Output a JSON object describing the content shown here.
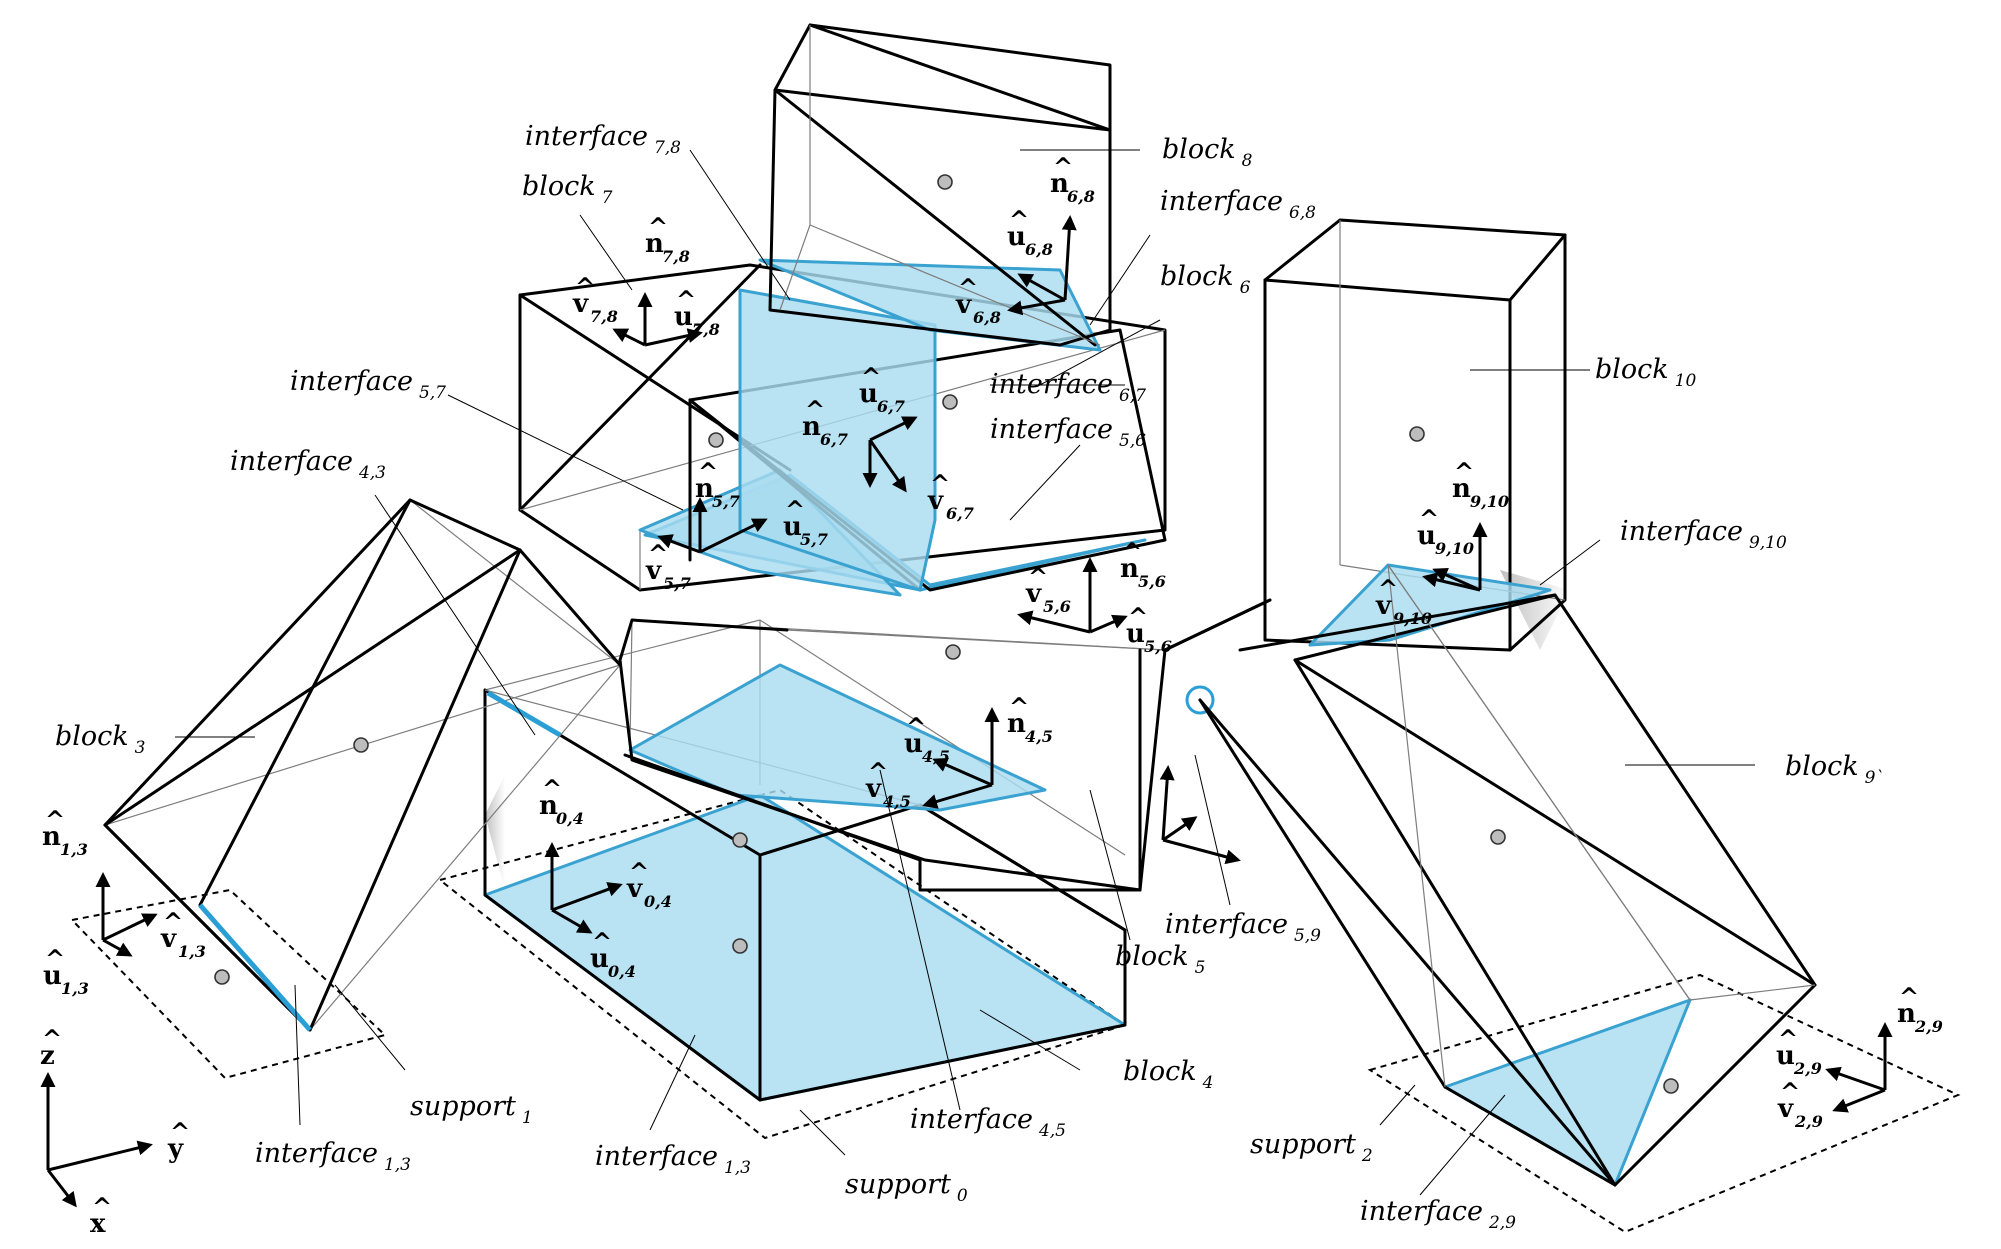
{
  "blocks": [
    {
      "id": "b3",
      "name": "block",
      "sub": "3"
    },
    {
      "id": "b4",
      "name": "block",
      "sub": "4"
    },
    {
      "id": "b5",
      "name": "block",
      "sub": "5"
    },
    {
      "id": "b6",
      "name": "block",
      "sub": "6"
    },
    {
      "id": "b7",
      "name": "block",
      "sub": "7"
    },
    {
      "id": "b8",
      "name": "block",
      "sub": "8"
    },
    {
      "id": "b9",
      "name": "block",
      "sub": "9`"
    },
    {
      "id": "b10",
      "name": "block",
      "sub": "10"
    }
  ],
  "interfaces": [
    {
      "id": "i78",
      "name": "interface",
      "sub": "7,8"
    },
    {
      "id": "i68",
      "name": "interface",
      "sub": "6,8"
    },
    {
      "id": "i57",
      "name": "interface",
      "sub": "5,7"
    },
    {
      "id": "i67",
      "name": "interface",
      "sub": "6,7"
    },
    {
      "id": "i56",
      "name": "interface",
      "sub": "5,6"
    },
    {
      "id": "i43",
      "name": "interface",
      "sub": "4,3"
    },
    {
      "id": "i910",
      "name": "interface",
      "sub": "9,10"
    },
    {
      "id": "i59",
      "name": "interface",
      "sub": "5,9"
    },
    {
      "id": "i13a",
      "name": "interface",
      "sub": "1,3"
    },
    {
      "id": "i13b",
      "name": "interface",
      "sub": "1,3"
    },
    {
      "id": "i45",
      "name": "interface",
      "sub": "4,5"
    },
    {
      "id": "i29",
      "name": "interface",
      "sub": "2,9"
    }
  ],
  "supports": [
    {
      "id": "s0",
      "name": "support",
      "sub": "0"
    },
    {
      "id": "s1",
      "name": "support",
      "sub": "1"
    },
    {
      "id": "s2",
      "name": "support",
      "sub": "2"
    }
  ],
  "frames": [
    {
      "id": "f78",
      "n": "n",
      "u": "u",
      "v": "v",
      "sub": "7,8"
    },
    {
      "id": "f68",
      "n": "n",
      "u": "u",
      "v": "v",
      "sub": "6,8"
    },
    {
      "id": "f67",
      "n": "n",
      "u": "u",
      "v": "v",
      "sub": "6,7"
    },
    {
      "id": "f57",
      "n": "n",
      "u": "u",
      "v": "v",
      "sub": "5,7"
    },
    {
      "id": "f56",
      "n": "n",
      "u": "u",
      "v": "v",
      "sub": "5,6"
    },
    {
      "id": "f910",
      "n": "n",
      "u": "u",
      "v": "v",
      "sub": "9,10"
    },
    {
      "id": "f45",
      "n": "n",
      "u": "u",
      "v": "v",
      "sub": "4,5"
    },
    {
      "id": "f04",
      "n": "n",
      "u": "u",
      "v": "v",
      "sub": "0,4"
    },
    {
      "id": "f13",
      "n": "n",
      "u": "u",
      "v": "v",
      "sub": "1,3"
    },
    {
      "id": "f29",
      "n": "n",
      "u": "u",
      "v": "v",
      "sub": "2,9"
    }
  ],
  "global_axes": {
    "z": "z",
    "y": "y",
    "x": "x"
  },
  "hat_glyph": "^",
  "colors": {
    "interface_fill": "#a9dcef",
    "interface_edge": "#3aa2d0",
    "edge": "#000000"
  }
}
